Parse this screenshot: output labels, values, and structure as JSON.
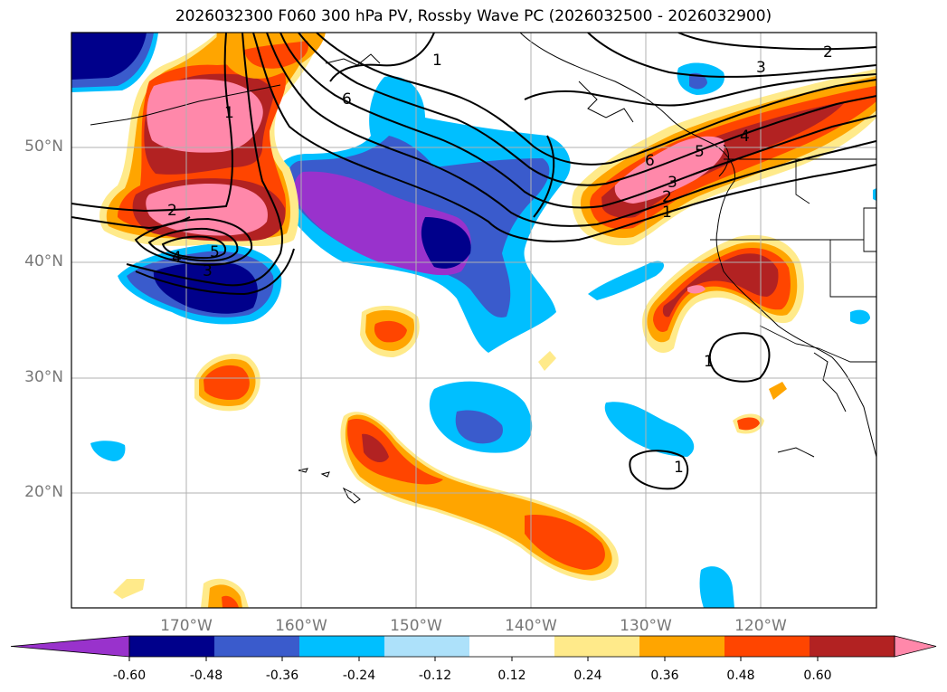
{
  "title": "2026032300 F060 300 hPa PV, Rossby Wave PC (2026032500 - 2026032900)",
  "map": {
    "lon_range": [
      -180,
      -110
    ],
    "lat_range": [
      10,
      60
    ],
    "lat_labels": [
      "50°N",
      "40°N",
      "30°N",
      "20°N"
    ],
    "lon_labels": [
      "170°W",
      "160°W",
      "150°W",
      "140°W",
      "130°W",
      "120°W"
    ],
    "contour_labels": [
      "1",
      "2",
      "3",
      "6",
      "1",
      "2",
      "3",
      "4",
      "5",
      "6",
      "1",
      "2",
      "3",
      "4",
      "5",
      "1",
      "1"
    ]
  },
  "colorbar": {
    "levels": [
      "-0.60",
      "-0.48",
      "-0.36",
      "-0.24",
      "-0.12",
      "0.12",
      "0.24",
      "0.36",
      "0.48",
      "0.60"
    ],
    "colors": [
      "#9932CC",
      "#00008B",
      "#3A5BCC",
      "#00BFFF",
      "#ADE1FA",
      "#FFFFFF",
      "#FFEA8A",
      "#FFA500",
      "#FF4500",
      "#B22222",
      "#FF88AA"
    ]
  }
}
